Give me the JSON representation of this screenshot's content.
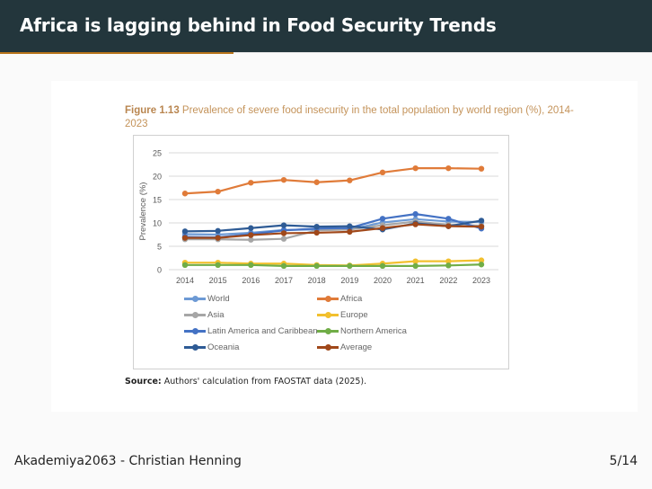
{
  "slide": {
    "title": "Africa is lagging behind in Food Security Trends",
    "footer_left": "Akademiya2063 - Christian Henning",
    "page_number": "5/14"
  },
  "figure": {
    "label": "Figure 1.13",
    "caption": " Prevalence of severe food insecurity in the total population by world region (%), 2014-2023",
    "source_label": "Source:",
    "source_text": " Authors' calculation from FAOSTAT data (2025)."
  },
  "colors": {
    "header_bg": "#23363c",
    "header_accent": "#b8741a"
  },
  "chart_data": {
    "type": "line",
    "title": "Prevalence of severe food insecurity in the total population by world region (%), 2014-2023",
    "xlabel": "",
    "ylabel": "Prevalence (%)",
    "ylim": [
      0,
      25
    ],
    "yticks": [
      0,
      5,
      10,
      15,
      20,
      25
    ],
    "grid": true,
    "legend_position": "bottom",
    "x": [
      "2014",
      "2015",
      "2016",
      "2017",
      "2018",
      "2019",
      "2020",
      "2021",
      "2022",
      "2023"
    ],
    "series": [
      {
        "name": "World",
        "color": "#6d9ad5",
        "values": [
          7.6,
          7.5,
          7.9,
          8.5,
          8.6,
          8.6,
          10.1,
          10.8,
          10.3,
          10.2
        ]
      },
      {
        "name": "Africa",
        "color": "#e07b39",
        "values": [
          16.3,
          16.7,
          18.6,
          19.2,
          18.7,
          19.1,
          20.8,
          21.7,
          21.7,
          21.6
        ]
      },
      {
        "name": "Asia",
        "color": "#a6a6a6",
        "values": [
          6.5,
          6.5,
          6.4,
          6.6,
          8.4,
          8.6,
          9.5,
          10.3,
          9.6,
          9.4
        ]
      },
      {
        "name": "Europe",
        "color": "#f2c02e",
        "values": [
          1.5,
          1.5,
          1.3,
          1.3,
          1.0,
          0.9,
          1.3,
          1.8,
          1.8,
          2.0
        ]
      },
      {
        "name": "Latin America and Caribbean",
        "color": "#4472c4",
        "values": [
          7.0,
          6.9,
          7.6,
          8.4,
          8.8,
          8.9,
          10.9,
          11.9,
          10.9,
          8.8
        ]
      },
      {
        "name": "Northern America",
        "color": "#70ad47",
        "values": [
          1.0,
          1.0,
          1.0,
          0.8,
          0.8,
          0.8,
          0.8,
          0.8,
          0.9,
          1.1
        ]
      },
      {
        "name": "Oceania",
        "color": "#2e5b95",
        "values": [
          8.2,
          8.3,
          8.9,
          9.5,
          9.2,
          9.3,
          8.6,
          9.9,
          9.3,
          10.5
        ]
      },
      {
        "name": "Average",
        "color": "#a0481a",
        "values": [
          6.8,
          6.8,
          7.4,
          7.8,
          7.9,
          8.1,
          8.9,
          9.7,
          9.3,
          9.2
        ]
      }
    ]
  }
}
